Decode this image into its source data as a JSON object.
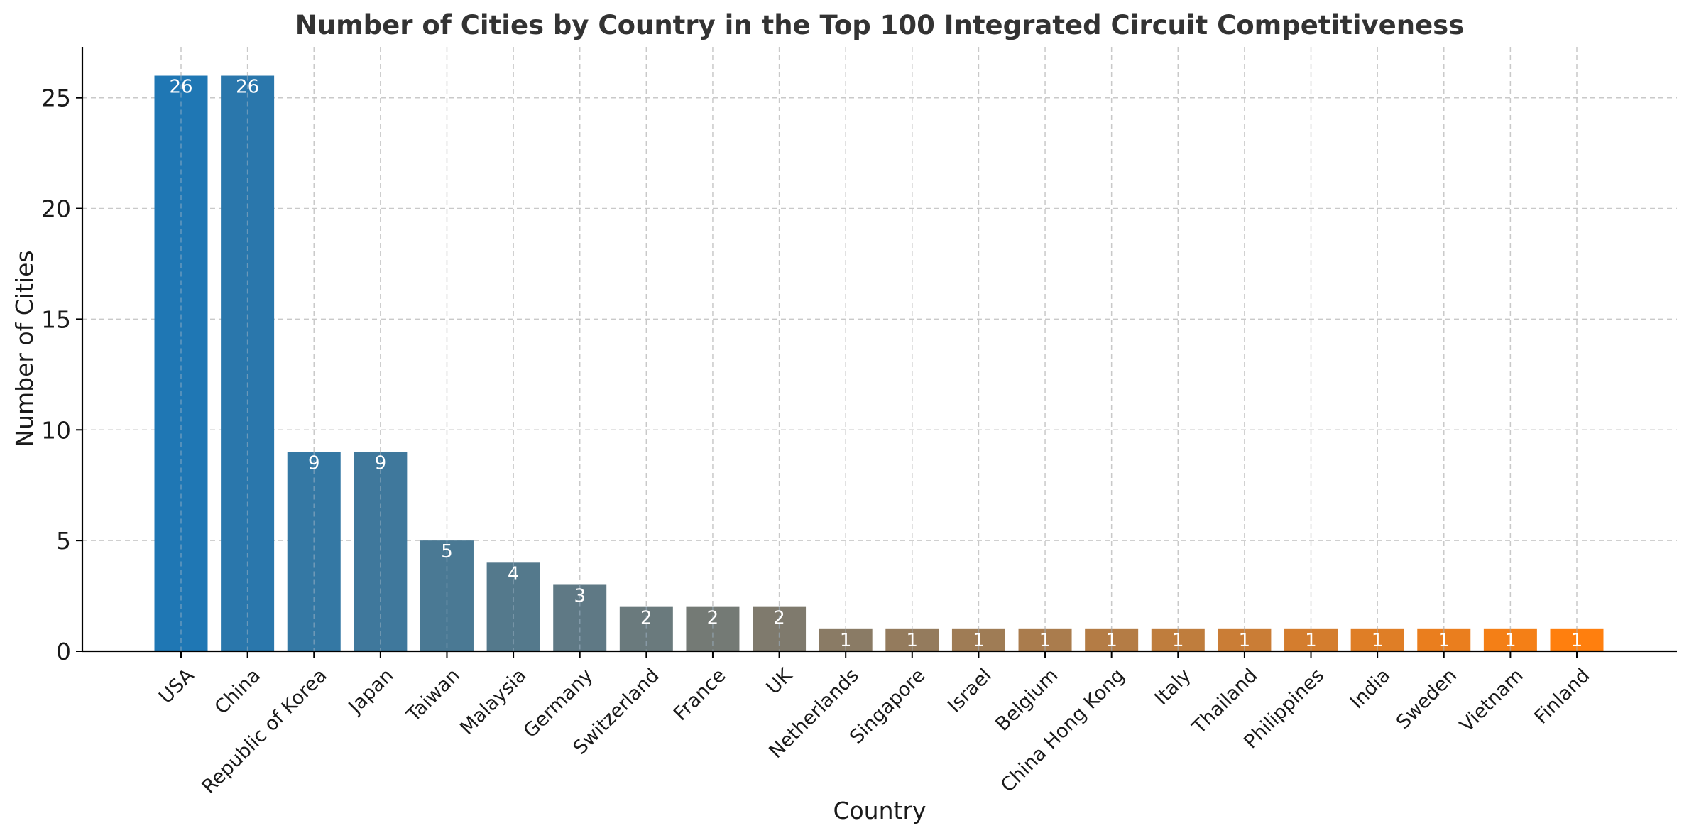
{
  "chart_data": {
    "type": "bar",
    "title": "Number of Cities by Country in the Top 100 Integrated Circuit Competitiveness",
    "xlabel": "Country",
    "ylabel": "Number of Cities",
    "categories": [
      "USA",
      "China",
      "Republic of Korea",
      "Japan",
      "Taiwan",
      "Malaysia",
      "Germany",
      "Switzerland",
      "France",
      "UK",
      "Netherlands",
      "Singapore",
      "Israel",
      "Belgium",
      "China Hong Kong",
      "Italy",
      "Thailand",
      "Philippines",
      "India",
      "Sweden",
      "Vietnam",
      "Finland"
    ],
    "values": [
      26,
      26,
      9,
      9,
      5,
      4,
      3,
      2,
      2,
      2,
      1,
      1,
      1,
      1,
      1,
      1,
      1,
      1,
      1,
      1,
      1,
      1
    ],
    "ylim": [
      0,
      27.3
    ],
    "yticks": [
      0,
      5,
      10,
      15,
      20,
      25
    ],
    "grid": true,
    "color_start": "#1f77b4",
    "color_end": "#ff7f0e"
  }
}
